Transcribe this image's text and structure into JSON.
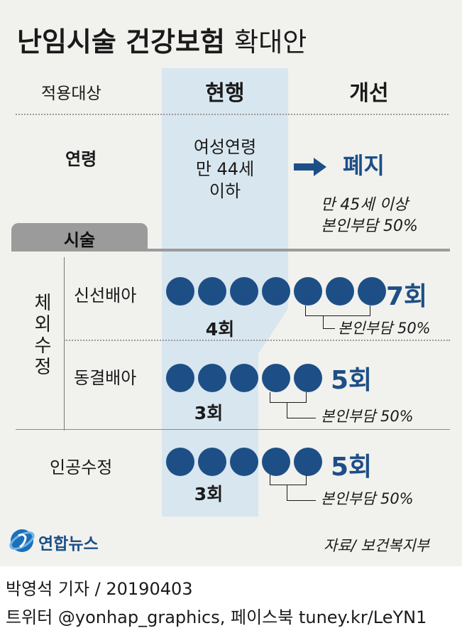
{
  "title": {
    "main": "난임시술 건강보험",
    "sub": "확대안"
  },
  "headers": {
    "target": "적용대상",
    "current": "현행",
    "improved": "개선"
  },
  "age": {
    "label": "연령",
    "current_lines": [
      "여성연령",
      "만 44세",
      "이하"
    ],
    "improved": "폐지",
    "note_lines": [
      "만 45세 이상",
      "본인부담 50%"
    ]
  },
  "procedure_tab": "시술",
  "group_label": "체외수정",
  "rows": [
    {
      "label": "신선배아",
      "current_count_label": "4회",
      "improved_count_label": "7회",
      "current": 4,
      "improved": 7,
      "note": "본인부담 50%"
    },
    {
      "label": "동결배아",
      "current_count_label": "3회",
      "improved_count_label": "5회",
      "current": 3,
      "improved": 5,
      "note": "본인부담 50%"
    },
    {
      "label": "인공수정",
      "current_count_label": "3회",
      "improved_count_label": "5회",
      "current": 3,
      "improved": 5,
      "note": "본인부담 50%"
    }
  ],
  "logo_text": "연합뉴스",
  "source": "자료/ 보건복지부",
  "footer": {
    "line1": "박영석 기자 / 20190403",
    "line2": "트위터 @yonhap_graphics, 페이스북 tuney.kr/LeYN1"
  },
  "colors": {
    "accent": "#1d4f86",
    "band": "#d8e6ef",
    "background": "#f1f1ee",
    "tab": "#9b9b9b"
  }
}
